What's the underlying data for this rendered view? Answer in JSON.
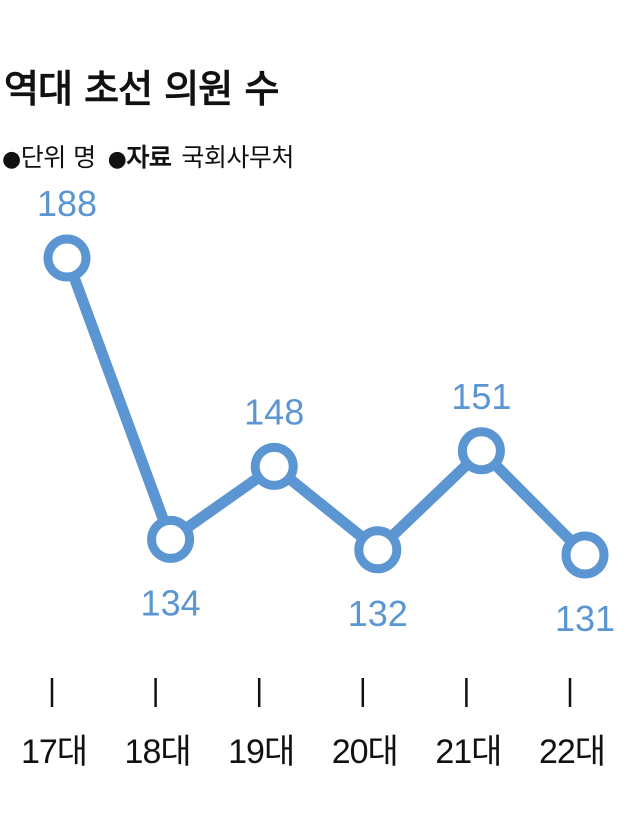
{
  "header": {
    "title": "역대 초선 의원 수",
    "unit_bullet": "●",
    "unit_text": "단위 명",
    "source_bullet": "●",
    "source_label": "자료",
    "source_value": "국회사무처"
  },
  "colors": {
    "line": "#5b95d2",
    "marker_fill": "#ffffff",
    "value_label": "#5b95d2",
    "axis_text": "#111111"
  },
  "chart_data": {
    "type": "line",
    "title": "역대 초선 의원 수",
    "categories": [
      "17대",
      "18대",
      "19대",
      "20대",
      "21대",
      "22대"
    ],
    "values": [
      188,
      134,
      148,
      132,
      151,
      131
    ],
    "data_labels": [
      "188",
      "134",
      "148",
      "132",
      "151",
      "131"
    ],
    "unit": "명",
    "grid": false,
    "legend": "none"
  }
}
